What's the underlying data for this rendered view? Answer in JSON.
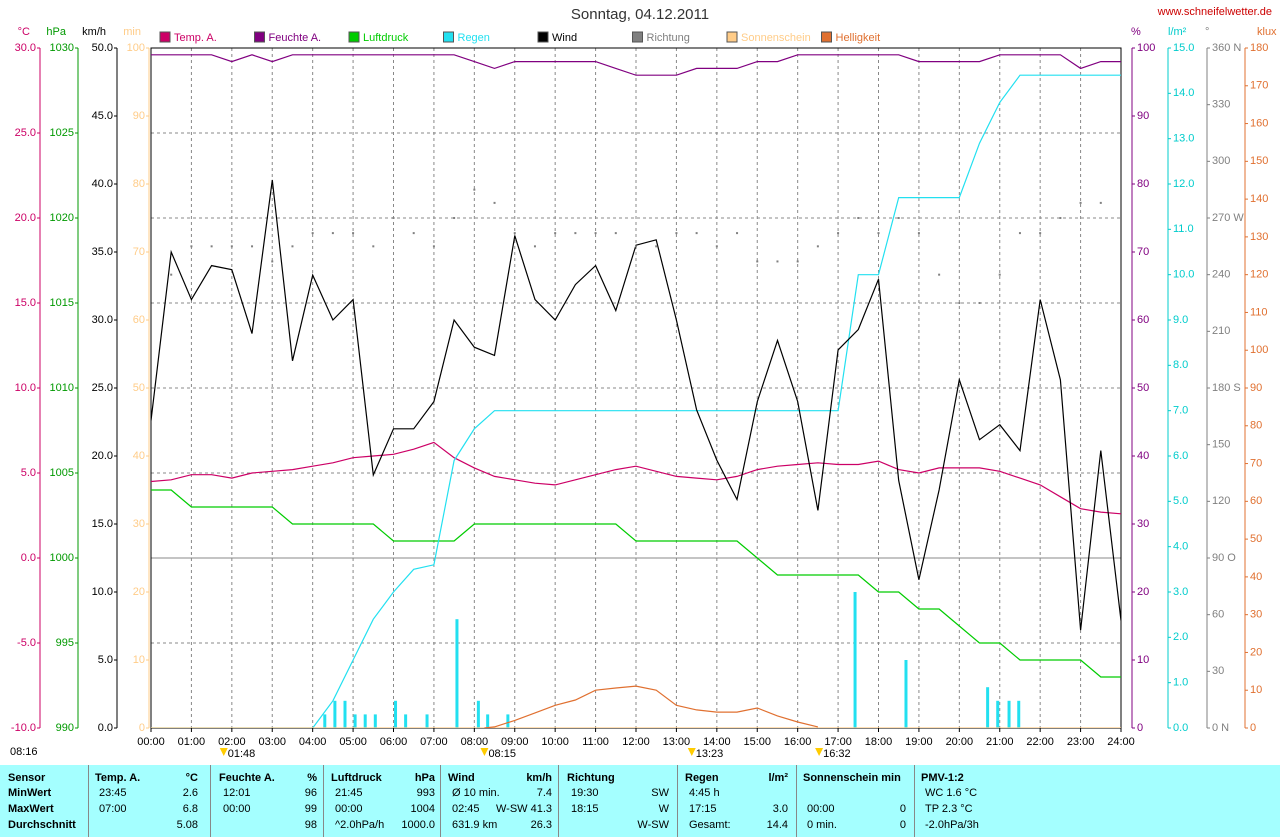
{
  "chart_data": {
    "type": "line",
    "title": "Sonntag, 04.12.2011",
    "source": "www.schneifelwetter.de",
    "x": [
      0,
      0.5,
      1,
      1.5,
      2,
      2.5,
      3,
      3.5,
      4,
      4.5,
      5,
      5.5,
      6,
      6.5,
      7,
      7.5,
      8,
      8.5,
      9,
      9.5,
      10,
      10.5,
      11,
      11.5,
      12,
      12.5,
      13,
      13.5,
      14,
      14.5,
      15,
      15.5,
      16,
      16.5,
      17,
      17.5,
      18,
      18.5,
      19,
      19.5,
      20,
      20.5,
      21,
      21.5,
      22,
      22.5,
      23,
      23.5,
      24
    ],
    "xlim": [
      0,
      24
    ],
    "xticks": [
      {
        "value": 0,
        "label": "00:00"
      },
      {
        "value": 1,
        "label": "01:00"
      },
      {
        "value": 2,
        "label": "02:00"
      },
      {
        "value": 3,
        "label": "03:00"
      },
      {
        "value": 4,
        "label": "04:00"
      },
      {
        "value": 5,
        "label": "05:00"
      },
      {
        "value": 6,
        "label": "06:00"
      },
      {
        "value": 7,
        "label": "07:00"
      },
      {
        "value": 8,
        "label": "08:00"
      },
      {
        "value": 9,
        "label": "09:00"
      },
      {
        "value": 10,
        "label": "10:00"
      },
      {
        "value": 11,
        "label": "11:00"
      },
      {
        "value": 12,
        "label": "12:00"
      },
      {
        "value": 13,
        "label": "13:00"
      },
      {
        "value": 14,
        "label": "14:00"
      },
      {
        "value": 15,
        "label": "15:00"
      },
      {
        "value": 16,
        "label": "16:00"
      },
      {
        "value": 17,
        "label": "17:00"
      },
      {
        "value": 18,
        "label": "18:00"
      },
      {
        "value": 19,
        "label": "19:00"
      },
      {
        "value": 20,
        "label": "20:00"
      },
      {
        "value": 21,
        "label": "21:00"
      },
      {
        "value": 22,
        "label": "22:00"
      },
      {
        "value": 23,
        "label": "23:00"
      },
      {
        "value": 24,
        "label": "24:00"
      }
    ],
    "grid": true,
    "axes": [
      {
        "unit": "°C",
        "side": "left",
        "color": "#cc0066",
        "lim": [
          -10,
          30
        ],
        "ticks": [
          {
            "value": 30,
            "label": "30.0"
          },
          {
            "value": 25,
            "label": "25.0"
          },
          {
            "value": 20,
            "label": "20.0"
          },
          {
            "value": 15,
            "label": "15.0"
          },
          {
            "value": 10,
            "label": "10.0"
          },
          {
            "value": 5,
            "label": "5.0"
          },
          {
            "value": 0,
            "label": "0.0"
          },
          {
            "value": -5,
            "label": "-5.0"
          },
          {
            "value": -10,
            "label": "-10.0"
          }
        ]
      },
      {
        "unit": "hPa",
        "side": "left",
        "color": "#009900",
        "lim": [
          990,
          1030
        ],
        "ticks": [
          1030,
          1025,
          1020,
          1015,
          1010,
          1005,
          1000,
          995,
          990
        ]
      },
      {
        "unit": "km/h",
        "side": "left",
        "color": "#000000",
        "lim": [
          0,
          50
        ],
        "ticks": [
          {
            "value": 50,
            "label": "50.0"
          },
          {
            "value": 45,
            "label": "45.0"
          },
          {
            "value": 40,
            "label": "40.0"
          },
          {
            "value": 35,
            "label": "35.0"
          },
          {
            "value": 30,
            "label": "30.0"
          },
          {
            "value": 25,
            "label": "25.0"
          },
          {
            "value": 20,
            "label": "20.0"
          },
          {
            "value": 15,
            "label": "15.0"
          },
          {
            "value": 10,
            "label": "10.0"
          },
          {
            "value": 5,
            "label": "5.0"
          },
          {
            "value": 0,
            "label": "0.0"
          }
        ]
      },
      {
        "unit": "min",
        "side": "left",
        "color": "#ffcc88",
        "lim": [
          0,
          100
        ],
        "ticks": [
          100,
          90,
          80,
          70,
          60,
          50,
          40,
          30,
          20,
          10,
          0
        ]
      },
      {
        "unit": "%",
        "side": "right",
        "color": "#800080",
        "lim": [
          0,
          100
        ],
        "ticks": [
          100,
          90,
          80,
          70,
          60,
          50,
          40,
          30,
          20,
          10,
          0
        ]
      },
      {
        "unit": "l/m²",
        "side": "right",
        "color": "#00cccc",
        "lim": [
          0,
          15
        ],
        "ticks": [
          {
            "value": 15,
            "label": "15.0"
          },
          {
            "value": 14,
            "label": "14.0"
          },
          {
            "value": 13,
            "label": "13.0"
          },
          {
            "value": 12,
            "label": "12.0"
          },
          {
            "value": 11,
            "label": "11.0"
          },
          {
            "value": 10,
            "label": "10.0"
          },
          {
            "value": 9,
            "label": "9.0"
          },
          {
            "value": 8,
            "label": "8.0"
          },
          {
            "value": 7,
            "label": "7.0"
          },
          {
            "value": 6,
            "label": "6.0"
          },
          {
            "value": 5,
            "label": "5.0"
          },
          {
            "value": 4,
            "label": "4.0"
          },
          {
            "value": 3,
            "label": "3.0"
          },
          {
            "value": 2,
            "label": "2.0"
          },
          {
            "value": 1,
            "label": "1.0"
          },
          {
            "value": 0,
            "label": "0.0"
          }
        ]
      },
      {
        "unit": "°",
        "side": "right",
        "color": "#808080",
        "lim": [
          0,
          360
        ],
        "ticks": [
          {
            "value": 360,
            "label": "360 N"
          },
          330,
          300,
          {
            "value": 270,
            "label": "270 W"
          },
          240,
          210,
          {
            "value": 180,
            "label": "180 S"
          },
          150,
          120,
          {
            "value": 90,
            "label": "90 O"
          },
          60,
          30,
          {
            "value": 0,
            "label": "0 N"
          }
        ]
      },
      {
        "unit": "klux",
        "side": "right",
        "color": "#e07030",
        "lim": [
          0,
          180
        ],
        "ticks": [
          180,
          170,
          160,
          150,
          140,
          130,
          120,
          110,
          100,
          90,
          80,
          70,
          60,
          50,
          40,
          30,
          20,
          10,
          0
        ]
      }
    ],
    "series": [
      {
        "name": "Temp. A.",
        "color": "#cc0066",
        "axis": 0,
        "style": "line",
        "values": [
          4.5,
          4.6,
          4.9,
          4.9,
          4.7,
          5.0,
          5.1,
          5.2,
          5.4,
          5.6,
          5.9,
          6.0,
          6.1,
          6.4,
          6.8,
          5.9,
          5.3,
          4.8,
          4.6,
          4.4,
          4.3,
          4.6,
          4.9,
          5.2,
          5.4,
          5.1,
          4.8,
          4.7,
          4.6,
          4.8,
          5.2,
          5.4,
          5.5,
          5.6,
          5.5,
          5.5,
          5.7,
          5.2,
          5.0,
          5.3,
          5.3,
          5.3,
          5.1,
          4.7,
          4.3,
          3.6,
          2.9,
          2.7,
          2.6
        ]
      },
      {
        "name": "Feuchte A.",
        "color": "#800080",
        "axis": 4,
        "style": "line",
        "values": [
          99,
          99,
          99,
          99,
          98,
          99,
          98,
          99,
          99,
          99,
          99,
          99,
          99,
          99,
          99,
          99,
          98,
          97,
          98,
          98,
          98,
          98,
          98,
          97,
          96,
          96,
          96,
          97,
          97,
          97,
          98,
          98,
          99,
          99,
          99,
          99,
          99,
          99,
          98,
          98,
          98,
          98,
          99,
          99,
          99,
          99,
          97,
          98,
          98
        ]
      },
      {
        "name": "Luftdruck",
        "color": "#00cc00",
        "axis": 1,
        "style": "line",
        "values": [
          1004,
          1004,
          1003,
          1003,
          1003,
          1003,
          1003,
          1002,
          1002,
          1002,
          1002,
          1002,
          1001,
          1001,
          1001,
          1001,
          1002,
          1002,
          1002,
          1002,
          1002,
          1002,
          1002,
          1002,
          1001,
          1001,
          1001,
          1001,
          1001,
          1001,
          1000,
          999,
          999,
          999,
          999,
          999,
          998,
          998,
          997,
          997,
          996,
          995,
          995,
          994,
          994,
          994,
          994,
          993,
          993
        ]
      },
      {
        "name": "Regen",
        "color": "#22e0f0",
        "axis": 5,
        "style": "line",
        "values": [
          0,
          0,
          0,
          0,
          0,
          0,
          0,
          0,
          0,
          0.6,
          1.5,
          2.4,
          3.0,
          3.5,
          3.6,
          5.9,
          6.6,
          7.0,
          7.0,
          7.0,
          7.0,
          7.0,
          7.0,
          7.0,
          7.0,
          7.0,
          7.0,
          7.0,
          7.0,
          7.0,
          7.0,
          7.0,
          7.0,
          7.0,
          7.0,
          10.0,
          10.0,
          11.7,
          11.7,
          11.7,
          11.7,
          12.9,
          13.8,
          14.4,
          14.4,
          14.4,
          14.4,
          14.4,
          14.4
        ],
        "bars": {
          "x": [
            4.3,
            4.55,
            4.8,
            5.05,
            5.3,
            5.55,
            6.05,
            6.3,
            6.83,
            7.57,
            8.1,
            8.33,
            8.83,
            17.42,
            18.68,
            20.7,
            20.95,
            21.23,
            21.47
          ],
          "values": [
            0.3,
            0.6,
            0.6,
            0.3,
            0.3,
            0.3,
            0.6,
            0.3,
            0.3,
            2.4,
            0.6,
            0.3,
            0.3,
            3.0,
            1.5,
            0.9,
            0.6,
            0.6,
            0.6
          ]
        }
      },
      {
        "name": "Wind",
        "color": "#000000",
        "axis": 2,
        "style": "line",
        "values": [
          22.6,
          35,
          31.5,
          34,
          33.7,
          29,
          40.3,
          27,
          33.3,
          30,
          31.5,
          18.6,
          22,
          22,
          24,
          30,
          28,
          27.4,
          36.2,
          31.5,
          30,
          32.6,
          34,
          30.7,
          35.5,
          35.9,
          30,
          23.4,
          19.7,
          16.8,
          24,
          28.5,
          24,
          16,
          27.8,
          29.3,
          33,
          18.2,
          10.9,
          17.5,
          25.6,
          21.2,
          22.3,
          20.4,
          31.5,
          25.6,
          7.2,
          20.4,
          7.9
        ]
      },
      {
        "name": "Richtung",
        "color": "#808080",
        "axis": 6,
        "style": "dots",
        "values": [
          248,
          240,
          255,
          255,
          255,
          255,
          247,
          255,
          262,
          262,
          262,
          255,
          270,
          262,
          255,
          270,
          285,
          278,
          262,
          255,
          262,
          262,
          262,
          262,
          255,
          255,
          262,
          262,
          255,
          262,
          247,
          247,
          247,
          255,
          262,
          270,
          262,
          270,
          262,
          240,
          225,
          225,
          240,
          262,
          262,
          270,
          278,
          278,
          278
        ]
      },
      {
        "name": "Sonnenschein",
        "color": "#ffcc88",
        "axis": 3,
        "style": "line",
        "x": [
          0,
          24
        ],
        "values": [
          0,
          0
        ]
      },
      {
        "name": "Helligkeit",
        "color": "#e07030",
        "axis": 7,
        "style": "line",
        "x": [
          8.25,
          8.5,
          9,
          9.5,
          10,
          10.5,
          11,
          11.5,
          12,
          12.5,
          13,
          13.5,
          14,
          14.5,
          15,
          15.5,
          16,
          16.5
        ],
        "values": [
          0,
          0.3,
          2,
          4,
          6,
          7.4,
          10,
          10.6,
          11.1,
          10,
          6,
          4.8,
          4.2,
          4.2,
          5.3,
          3.2,
          1.6,
          0.3
        ]
      }
    ],
    "corner_label": "08:16",
    "annotations": [
      {
        "x": 1.8,
        "label": "01:48"
      },
      {
        "x": 8.25,
        "label": "08:15"
      },
      {
        "x": 13.38,
        "label": "13:23"
      },
      {
        "x": 16.53,
        "label": "16:32"
      }
    ]
  },
  "table": {
    "columns": [
      {
        "label": "Sensor"
      },
      {
        "label": "Temp. A.",
        "unit": "°C"
      },
      {
        "label": "Feuchte A.",
        "unit": "%"
      },
      {
        "label": "Luftdruck",
        "unit": "hPa"
      },
      {
        "label": "Wind",
        "unit": "km/h"
      },
      {
        "label": "Richtung"
      },
      {
        "label": "Regen",
        "unit": "l/m²"
      },
      {
        "label": "Sonnenschein min"
      },
      {
        "label": "PMV-1:2"
      }
    ],
    "rows": [
      {
        "label": "MinWert",
        "cells": [
          {
            "left": "23:45",
            "right": "2.6"
          },
          {
            "left": "12:01",
            "right": "96"
          },
          {
            "left": "21:45",
            "right": "993"
          },
          {
            "left": "Ø 10 min.",
            "right": "7.4"
          },
          {
            "left": "19:30",
            "right": "SW"
          },
          {
            "left": "4:45 h"
          },
          {},
          {
            "left": "WC 1.6 °C"
          }
        ]
      },
      {
        "label": "MaxWert",
        "cells": [
          {
            "left": "07:00",
            "right": "6.8"
          },
          {
            "left": "00:00",
            "right": "99"
          },
          {
            "left": "00:00",
            "right": "1004"
          },
          {
            "left": "02:45",
            "right": "W-SW 41.3"
          },
          {
            "left": "18:15",
            "right": "W"
          },
          {
            "left": "17:15",
            "right": "3.0"
          },
          {
            "left": "00:00",
            "right": "0"
          },
          {
            "left": "TP 2.3 °C"
          }
        ]
      },
      {
        "label": "Durchschnitt",
        "cells": [
          {
            "right": "5.08"
          },
          {
            "right": "98"
          },
          {
            "left": "^2.0hPa/h",
            "right": "1000.0"
          },
          {
            "left": "631.9 km",
            "right": "26.3"
          },
          {
            "right": "W-SW"
          },
          {
            "left": "Gesamt:",
            "right": "14.4"
          },
          {
            "left": "0 min.",
            "right": "0"
          },
          {
            "left": "-2.0hPa/3h"
          }
        ]
      }
    ]
  }
}
